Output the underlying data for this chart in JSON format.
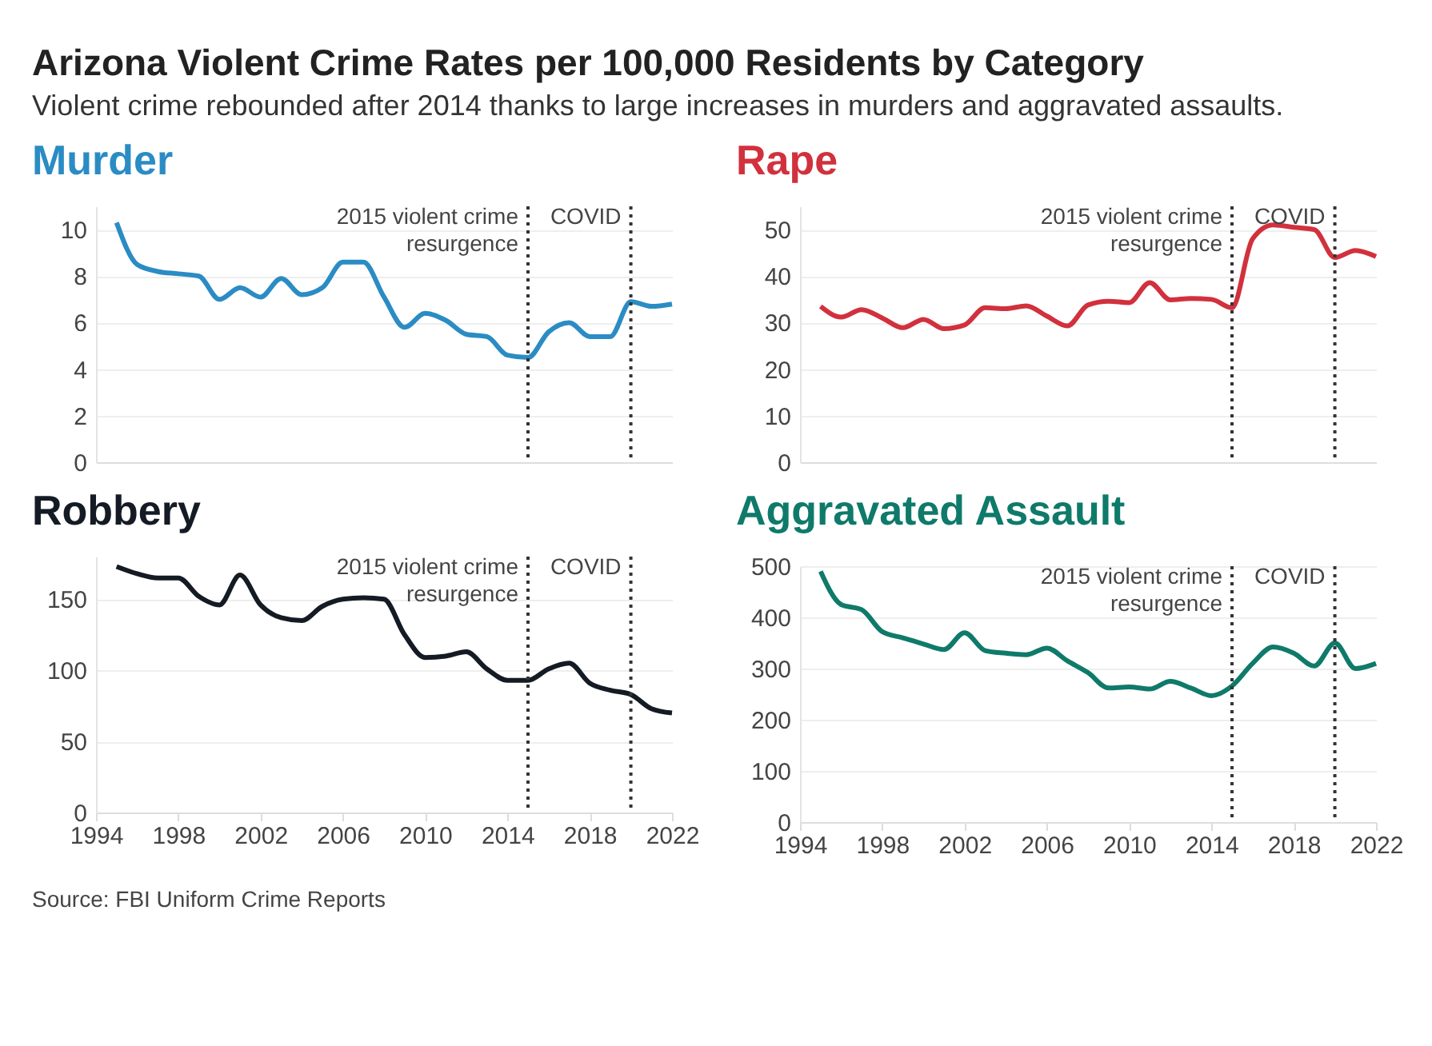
{
  "chart_data": [
    {
      "type": "other",
      "title": "Arizona Violent Crime Rates per 100,000 Residents by Category",
      "subtitle": "Violent crime rebounded after 2014 thanks to large increases in murders and aggravated assaults.",
      "annotations": [
        "Source: FBI Uniform Crime Reports"
      ]
    },
    {
      "type": "line",
      "title": "Murder",
      "x": [
        1995,
        1996,
        1997,
        1998,
        1999,
        2000,
        2001,
        2002,
        2003,
        2004,
        2005,
        2006,
        2007,
        2008,
        2009,
        2010,
        2011,
        2012,
        2013,
        2014,
        2015,
        2016,
        2017,
        2018,
        2019,
        2020,
        2021,
        2022
      ],
      "series": [
        {
          "color": "#2b8cc4",
          "values": [
            10.3,
            8.5,
            8.2,
            8.1,
            8.0,
            7.0,
            7.5,
            7.1,
            7.9,
            7.2,
            7.5,
            8.6,
            8.6,
            7.1,
            5.8,
            6.4,
            6.1,
            5.5,
            5.4,
            4.6,
            4.5,
            5.6,
            6.0,
            5.4,
            5.4,
            6.9,
            6.7,
            6.8
          ]
        }
      ],
      "xlim": [
        1994,
        2022
      ],
      "xticks": [
        1994,
        1998,
        2002,
        2006,
        2010,
        2014,
        2018,
        2022
      ],
      "ylim": [
        0,
        11
      ],
      "yticks": [
        0,
        2,
        4,
        6,
        8,
        10
      ],
      "grid": "y",
      "tick_labels": "y",
      "legend": false,
      "ref_lines": [
        {
          "axis": "x",
          "value": 2015,
          "label": "2015 violent crime resurgence",
          "line_style": "dotted",
          "color": "#333333"
        },
        {
          "axis": "x",
          "value": 2020,
          "label": "COVID",
          "line_style": "dotted",
          "color": "#333333"
        }
      ]
    },
    {
      "type": "line",
      "title": "Rape",
      "x": [
        1995,
        1996,
        1997,
        1998,
        1999,
        2000,
        2001,
        2002,
        2003,
        2004,
        2005,
        2006,
        2007,
        2008,
        2009,
        2010,
        2011,
        2012,
        2013,
        2014,
        2015,
        2016,
        2017,
        2018,
        2019,
        2020,
        2021,
        2022
      ],
      "series": [
        {
          "color": "#d1313d",
          "values": [
            33.5,
            31.2,
            32.8,
            31.0,
            28.9,
            30.7,
            28.7,
            29.5,
            33.2,
            33.0,
            33.6,
            31.4,
            29.3,
            33.8,
            34.6,
            34.3,
            38.6,
            34.9,
            35.2,
            35.0,
            33.2,
            48.0,
            51.0,
            50.5,
            50.0,
            44.0,
            45.5,
            44.2
          ]
        }
      ],
      "xlim": [
        1994,
        2022
      ],
      "xticks": [
        1994,
        1998,
        2002,
        2006,
        2010,
        2014,
        2018,
        2022
      ],
      "ylim": [
        0,
        55
      ],
      "yticks": [
        0,
        10,
        20,
        30,
        40,
        50
      ],
      "grid": "y",
      "tick_labels": "y",
      "legend": false,
      "ref_lines": [
        {
          "axis": "x",
          "value": 2015,
          "label": "2015 violent crime resurgence",
          "line_style": "dotted",
          "color": "#333333"
        },
        {
          "axis": "x",
          "value": 2020,
          "label": "COVID",
          "line_style": "dotted",
          "color": "#333333"
        }
      ]
    },
    {
      "type": "line",
      "title": "Robbery",
      "x": [
        1995,
        1996,
        1997,
        1998,
        1999,
        2000,
        2001,
        2002,
        2003,
        2004,
        2005,
        2006,
        2007,
        2008,
        2009,
        2010,
        2011,
        2012,
        2013,
        2014,
        2015,
        2016,
        2017,
        2018,
        2019,
        2020,
        2021,
        2022
      ],
      "series": [
        {
          "color": "#151b24",
          "values": [
            173,
            168,
            165,
            165,
            152,
            146,
            167,
            146,
            137,
            135,
            145,
            150,
            151,
            150,
            125,
            109,
            110,
            113,
            101,
            93,
            93,
            101,
            105,
            91,
            86,
            83,
            73,
            70
          ]
        }
      ],
      "xlim": [
        1994,
        2022
      ],
      "xticks": [
        1994,
        1998,
        2002,
        2006,
        2010,
        2014,
        2018,
        2022
      ],
      "ylim": [
        0,
        180
      ],
      "yticks": [
        0,
        50,
        100,
        150
      ],
      "grid": "y",
      "legend": false,
      "ref_lines": [
        {
          "axis": "x",
          "value": 2015,
          "label": "2015 violent crime resurgence",
          "line_style": "dotted",
          "color": "#333333"
        },
        {
          "axis": "x",
          "value": 2020,
          "label": "COVID",
          "line_style": "dotted",
          "color": "#333333"
        }
      ]
    },
    {
      "type": "line",
      "title": "Aggravated Assault",
      "x": [
        1995,
        1996,
        1997,
        1998,
        1999,
        2000,
        2001,
        2002,
        2003,
        2004,
        2005,
        2006,
        2007,
        2008,
        2009,
        2010,
        2011,
        2012,
        2013,
        2014,
        2015,
        2016,
        2017,
        2018,
        2019,
        2020,
        2021,
        2022
      ],
      "series": [
        {
          "color": "#0f7a6a",
          "values": [
            490,
            425,
            415,
            372,
            360,
            348,
            337,
            370,
            335,
            330,
            327,
            340,
            315,
            292,
            262,
            264,
            260,
            275,
            262,
            247,
            266,
            310,
            342,
            330,
            305,
            350,
            300,
            310
          ]
        }
      ],
      "xlim": [
        1994,
        2022
      ],
      "xticks": [
        1994,
        1998,
        2002,
        2006,
        2010,
        2014,
        2018,
        2022
      ],
      "ylim": [
        0,
        500
      ],
      "yticks": [
        0,
        100,
        200,
        300,
        400,
        500
      ],
      "grid": "y",
      "legend": false,
      "ref_lines": [
        {
          "axis": "x",
          "value": 2015,
          "label": "2015 violent crime resurgence",
          "line_style": "dotted",
          "color": "#333333"
        },
        {
          "axis": "x",
          "value": 2020,
          "label": "COVID",
          "line_style": "dotted",
          "color": "#333333"
        }
      ]
    }
  ]
}
